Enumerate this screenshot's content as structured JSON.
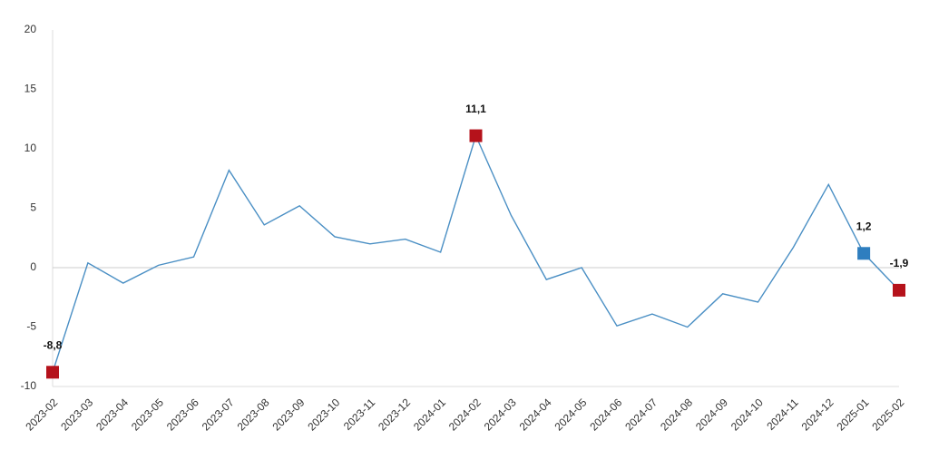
{
  "chart_data": {
    "type": "line",
    "categories": [
      "2023-02",
      "2023-03",
      "2023-04",
      "2023-05",
      "2023-06",
      "2023-07",
      "2023-08",
      "2023-09",
      "2023-10",
      "2023-11",
      "2023-12",
      "2024-01",
      "2024-02",
      "2024-03",
      "2024-04",
      "2024-05",
      "2024-06",
      "2024-07",
      "2024-08",
      "2024-09",
      "2024-10",
      "2024-11",
      "2024-12",
      "2025-01",
      "2025-02"
    ],
    "values": [
      -8.8,
      0.4,
      -1.3,
      0.2,
      0.9,
      8.2,
      3.6,
      5.2,
      2.6,
      2.0,
      2.4,
      1.3,
      11.1,
      4.4,
      -1.0,
      0.0,
      -4.9,
      -3.9,
      -5.0,
      -2.2,
      -2.9,
      1.7,
      7.0,
      1.2,
      -1.9
    ],
    "value_labels": [
      "-8,8",
      null,
      null,
      null,
      null,
      null,
      null,
      null,
      null,
      null,
      null,
      null,
      "11,1",
      null,
      null,
      null,
      null,
      null,
      null,
      null,
      null,
      null,
      null,
      "1,2",
      "-1,9"
    ],
    "marker_colors": [
      "#b5121b",
      null,
      null,
      null,
      null,
      null,
      null,
      null,
      null,
      null,
      null,
      null,
      "#b5121b",
      null,
      null,
      null,
      null,
      null,
      null,
      null,
      null,
      null,
      null,
      "#2e7ebf",
      "#b5121b"
    ],
    "color": "#4a8fc4",
    "ylim": [
      -10,
      20
    ],
    "yticks": [
      -10,
      -5,
      0,
      5,
      10,
      15,
      20
    ]
  }
}
